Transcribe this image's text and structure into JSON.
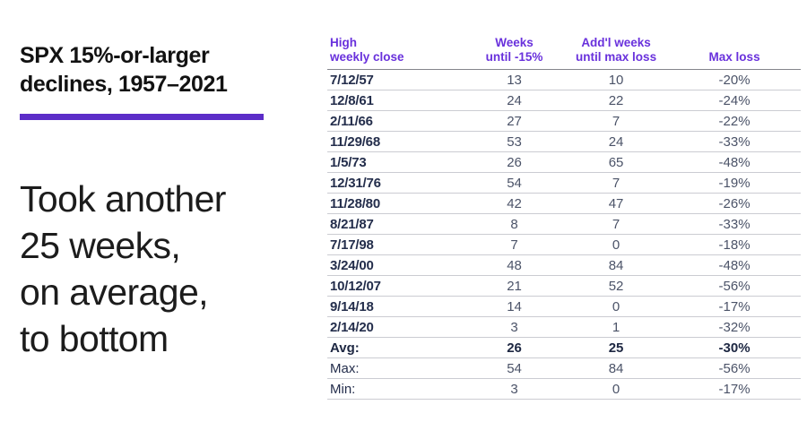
{
  "colors": {
    "accent_purple_text": "#6931dc",
    "accent_purple_bar": "#5c2dc8",
    "title_black": "#121212",
    "date_navy": "#242e4c",
    "value_gray": "#4b5368",
    "row_line": "#cbccd2",
    "header_line": "#84858c"
  },
  "left_panel": {
    "title_lines": [
      "SPX 15%-or-larger",
      "declines, 1957–2021"
    ],
    "callout_lines": [
      "Took another",
      "25 weeks,",
      "on average,",
      "to bottom"
    ]
  },
  "table": {
    "headers": [
      {
        "lines": [
          "High",
          "weekly close"
        ]
      },
      {
        "lines": [
          "Weeks",
          "until -15%"
        ]
      },
      {
        "lines": [
          "Add'l weeks",
          "until max loss"
        ]
      },
      {
        "lines": [
          "Max loss"
        ]
      }
    ],
    "rows": [
      {
        "style": "date",
        "cells": [
          "7/12/57",
          "13",
          "10",
          "-20%"
        ]
      },
      {
        "style": "date",
        "cells": [
          "12/8/61",
          "24",
          "22",
          "-24%"
        ]
      },
      {
        "style": "date",
        "cells": [
          "2/11/66",
          "27",
          "7",
          "-22%"
        ]
      },
      {
        "style": "date",
        "cells": [
          "11/29/68",
          "53",
          "24",
          "-33%"
        ]
      },
      {
        "style": "date",
        "cells": [
          "1/5/73",
          "26",
          "65",
          "-48%"
        ]
      },
      {
        "style": "date",
        "cells": [
          "12/31/76",
          "54",
          "7",
          "-19%"
        ]
      },
      {
        "style": "date",
        "cells": [
          "11/28/80",
          "42",
          "47",
          "-26%"
        ]
      },
      {
        "style": "date",
        "cells": [
          "8/21/87",
          "8",
          "7",
          "-33%"
        ]
      },
      {
        "style": "date",
        "cells": [
          "7/17/98",
          "7",
          "0",
          "-18%"
        ]
      },
      {
        "style": "date",
        "cells": [
          "3/24/00",
          "48",
          "84",
          "-48%"
        ]
      },
      {
        "style": "date",
        "cells": [
          "10/12/07",
          "21",
          "52",
          "-56%"
        ]
      },
      {
        "style": "date",
        "cells": [
          "9/14/18",
          "14",
          "0",
          "-17%"
        ]
      },
      {
        "style": "date",
        "cells": [
          "2/14/20",
          "3",
          "1",
          "-32%"
        ]
      },
      {
        "style": "avg",
        "cells": [
          "Avg:",
          "26",
          "25",
          "-30%"
        ]
      },
      {
        "style": "plain",
        "cells": [
          "Max:",
          "54",
          "84",
          "-56%"
        ]
      },
      {
        "style": "plain",
        "cells": [
          "Min:",
          "3",
          "0",
          "-17%"
        ]
      }
    ]
  },
  "chart_data": {
    "type": "table",
    "title": "SPX 15%-or-larger declines, 1957–2021",
    "annotation": "Took another 25 weeks, on average, to bottom",
    "columns": [
      "High weekly close",
      "Weeks until -15%",
      "Add'l weeks until max loss",
      "Max loss"
    ],
    "rows": [
      [
        "7/12/57",
        13,
        10,
        "-20%"
      ],
      [
        "12/8/61",
        24,
        22,
        "-24%"
      ],
      [
        "2/11/66",
        27,
        7,
        "-22%"
      ],
      [
        "11/29/68",
        53,
        24,
        "-33%"
      ],
      [
        "1/5/73",
        26,
        65,
        "-48%"
      ],
      [
        "12/31/76",
        54,
        7,
        "-19%"
      ],
      [
        "11/28/80",
        42,
        47,
        "-26%"
      ],
      [
        "8/21/87",
        8,
        7,
        "-33%"
      ],
      [
        "7/17/98",
        7,
        0,
        "-18%"
      ],
      [
        "3/24/00",
        48,
        84,
        "-48%"
      ],
      [
        "10/12/07",
        21,
        52,
        "-56%"
      ],
      [
        "9/14/18",
        14,
        0,
        "-17%"
      ],
      [
        "2/14/20",
        3,
        1,
        "-32%"
      ]
    ],
    "summary_rows": [
      [
        "Avg:",
        26,
        25,
        "-30%"
      ],
      [
        "Max:",
        54,
        84,
        "-56%"
      ],
      [
        "Min:",
        3,
        0,
        "-17%"
      ]
    ]
  }
}
